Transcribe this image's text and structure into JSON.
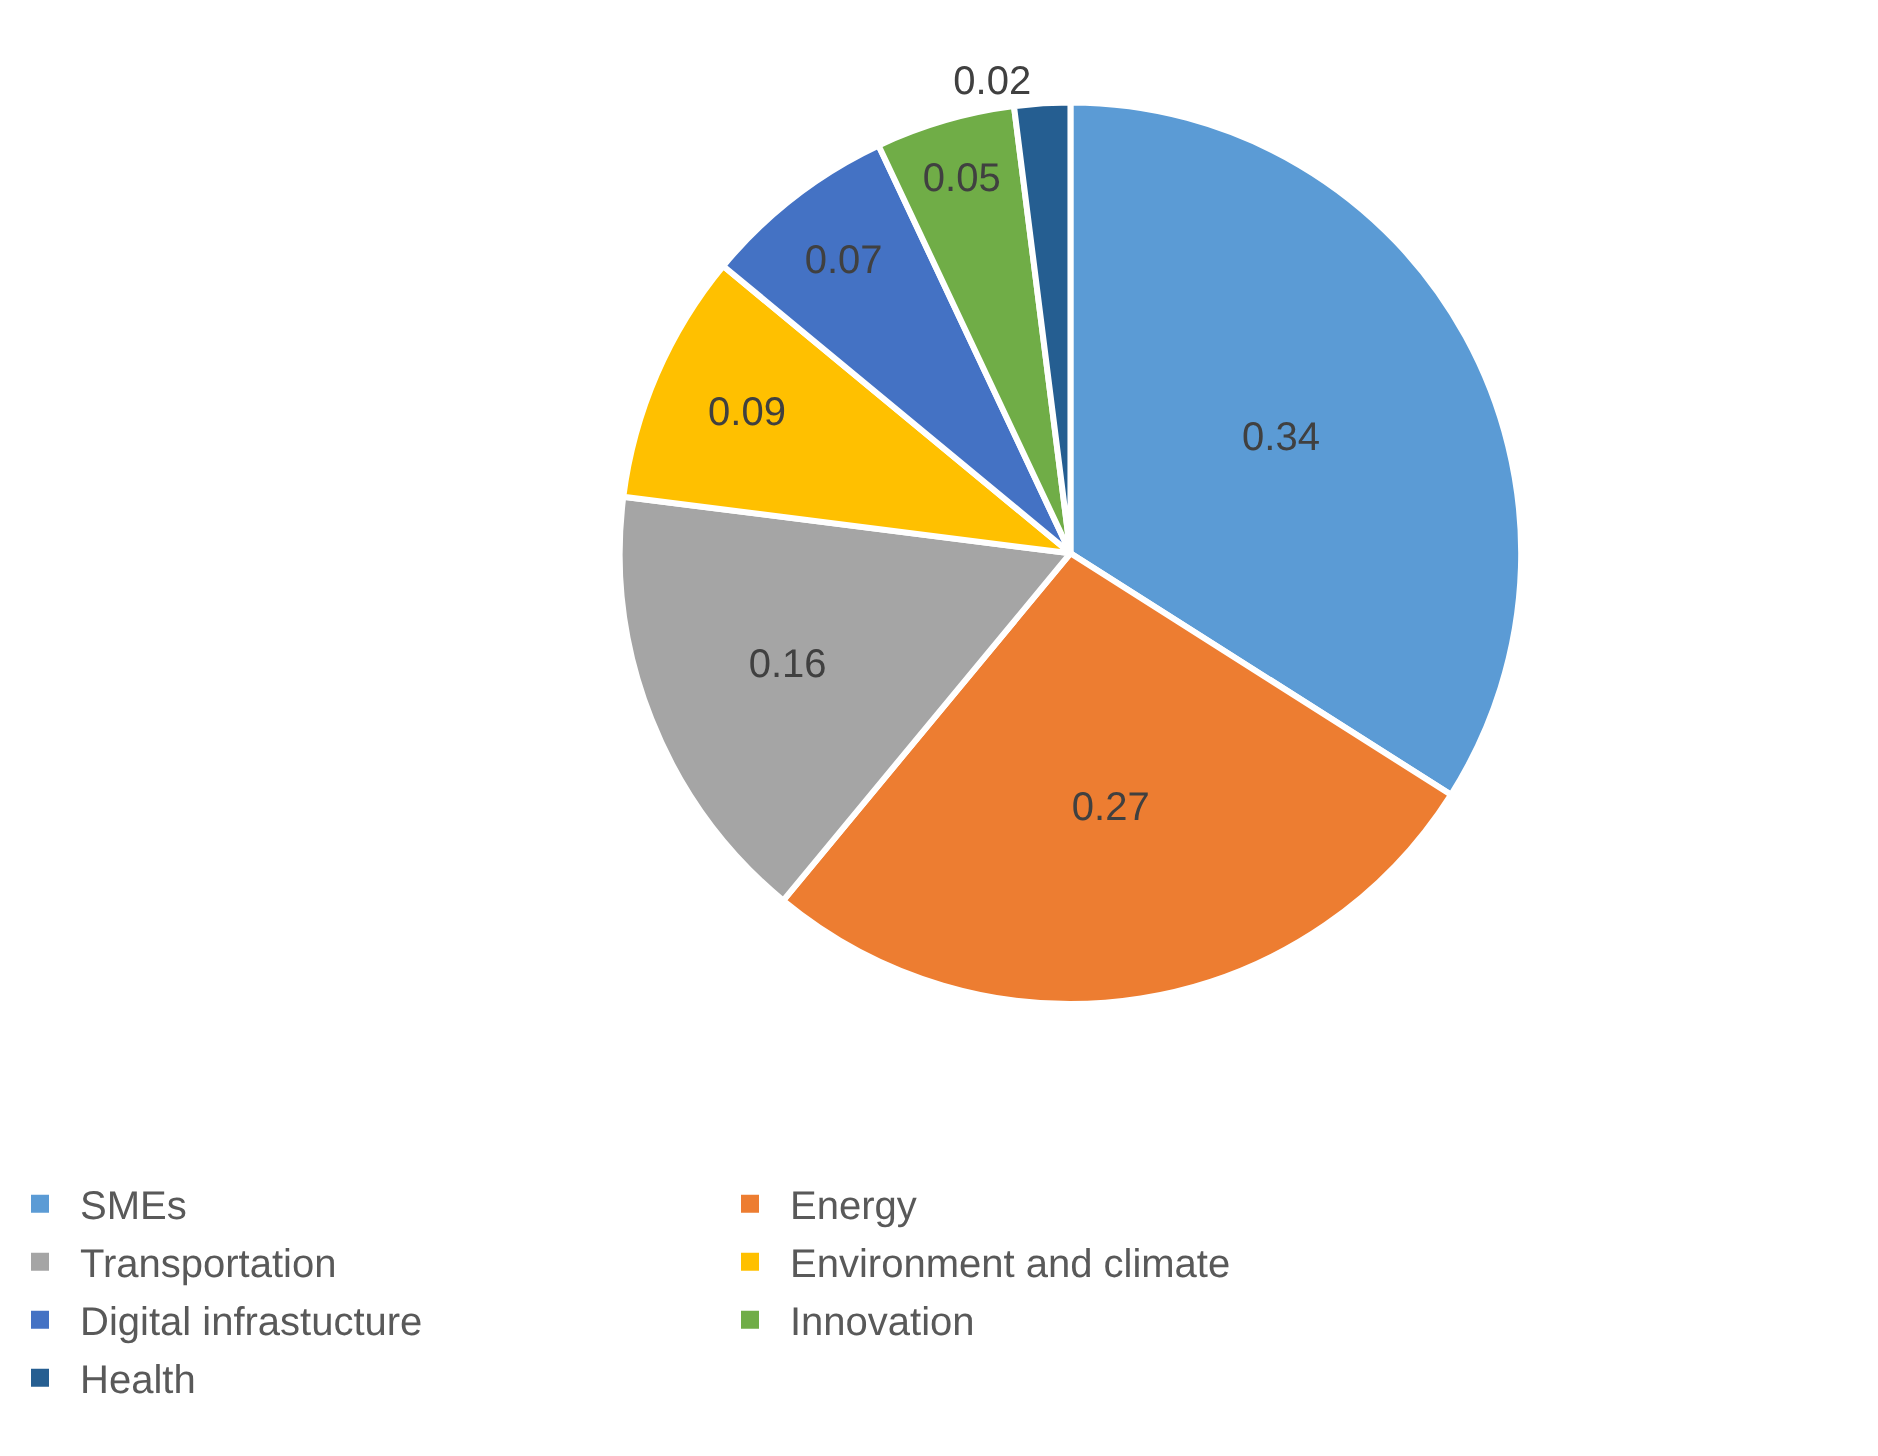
{
  "chart_data": {
    "type": "pie",
    "categories": [
      "SMEs",
      "Energy",
      "Transportation",
      "Environment and climate",
      "Digital infrastucture",
      "Innovation",
      "Health"
    ],
    "values": [
      0.34,
      0.27,
      0.16,
      0.09,
      0.07,
      0.05,
      0.02
    ],
    "colors": [
      "#5b9bd5",
      "#ed7d31",
      "#a5a5a5",
      "#ffc000",
      "#4472c4",
      "#70ad47",
      "#255e91"
    ],
    "data_labels": true,
    "legend": "bottom"
  }
}
